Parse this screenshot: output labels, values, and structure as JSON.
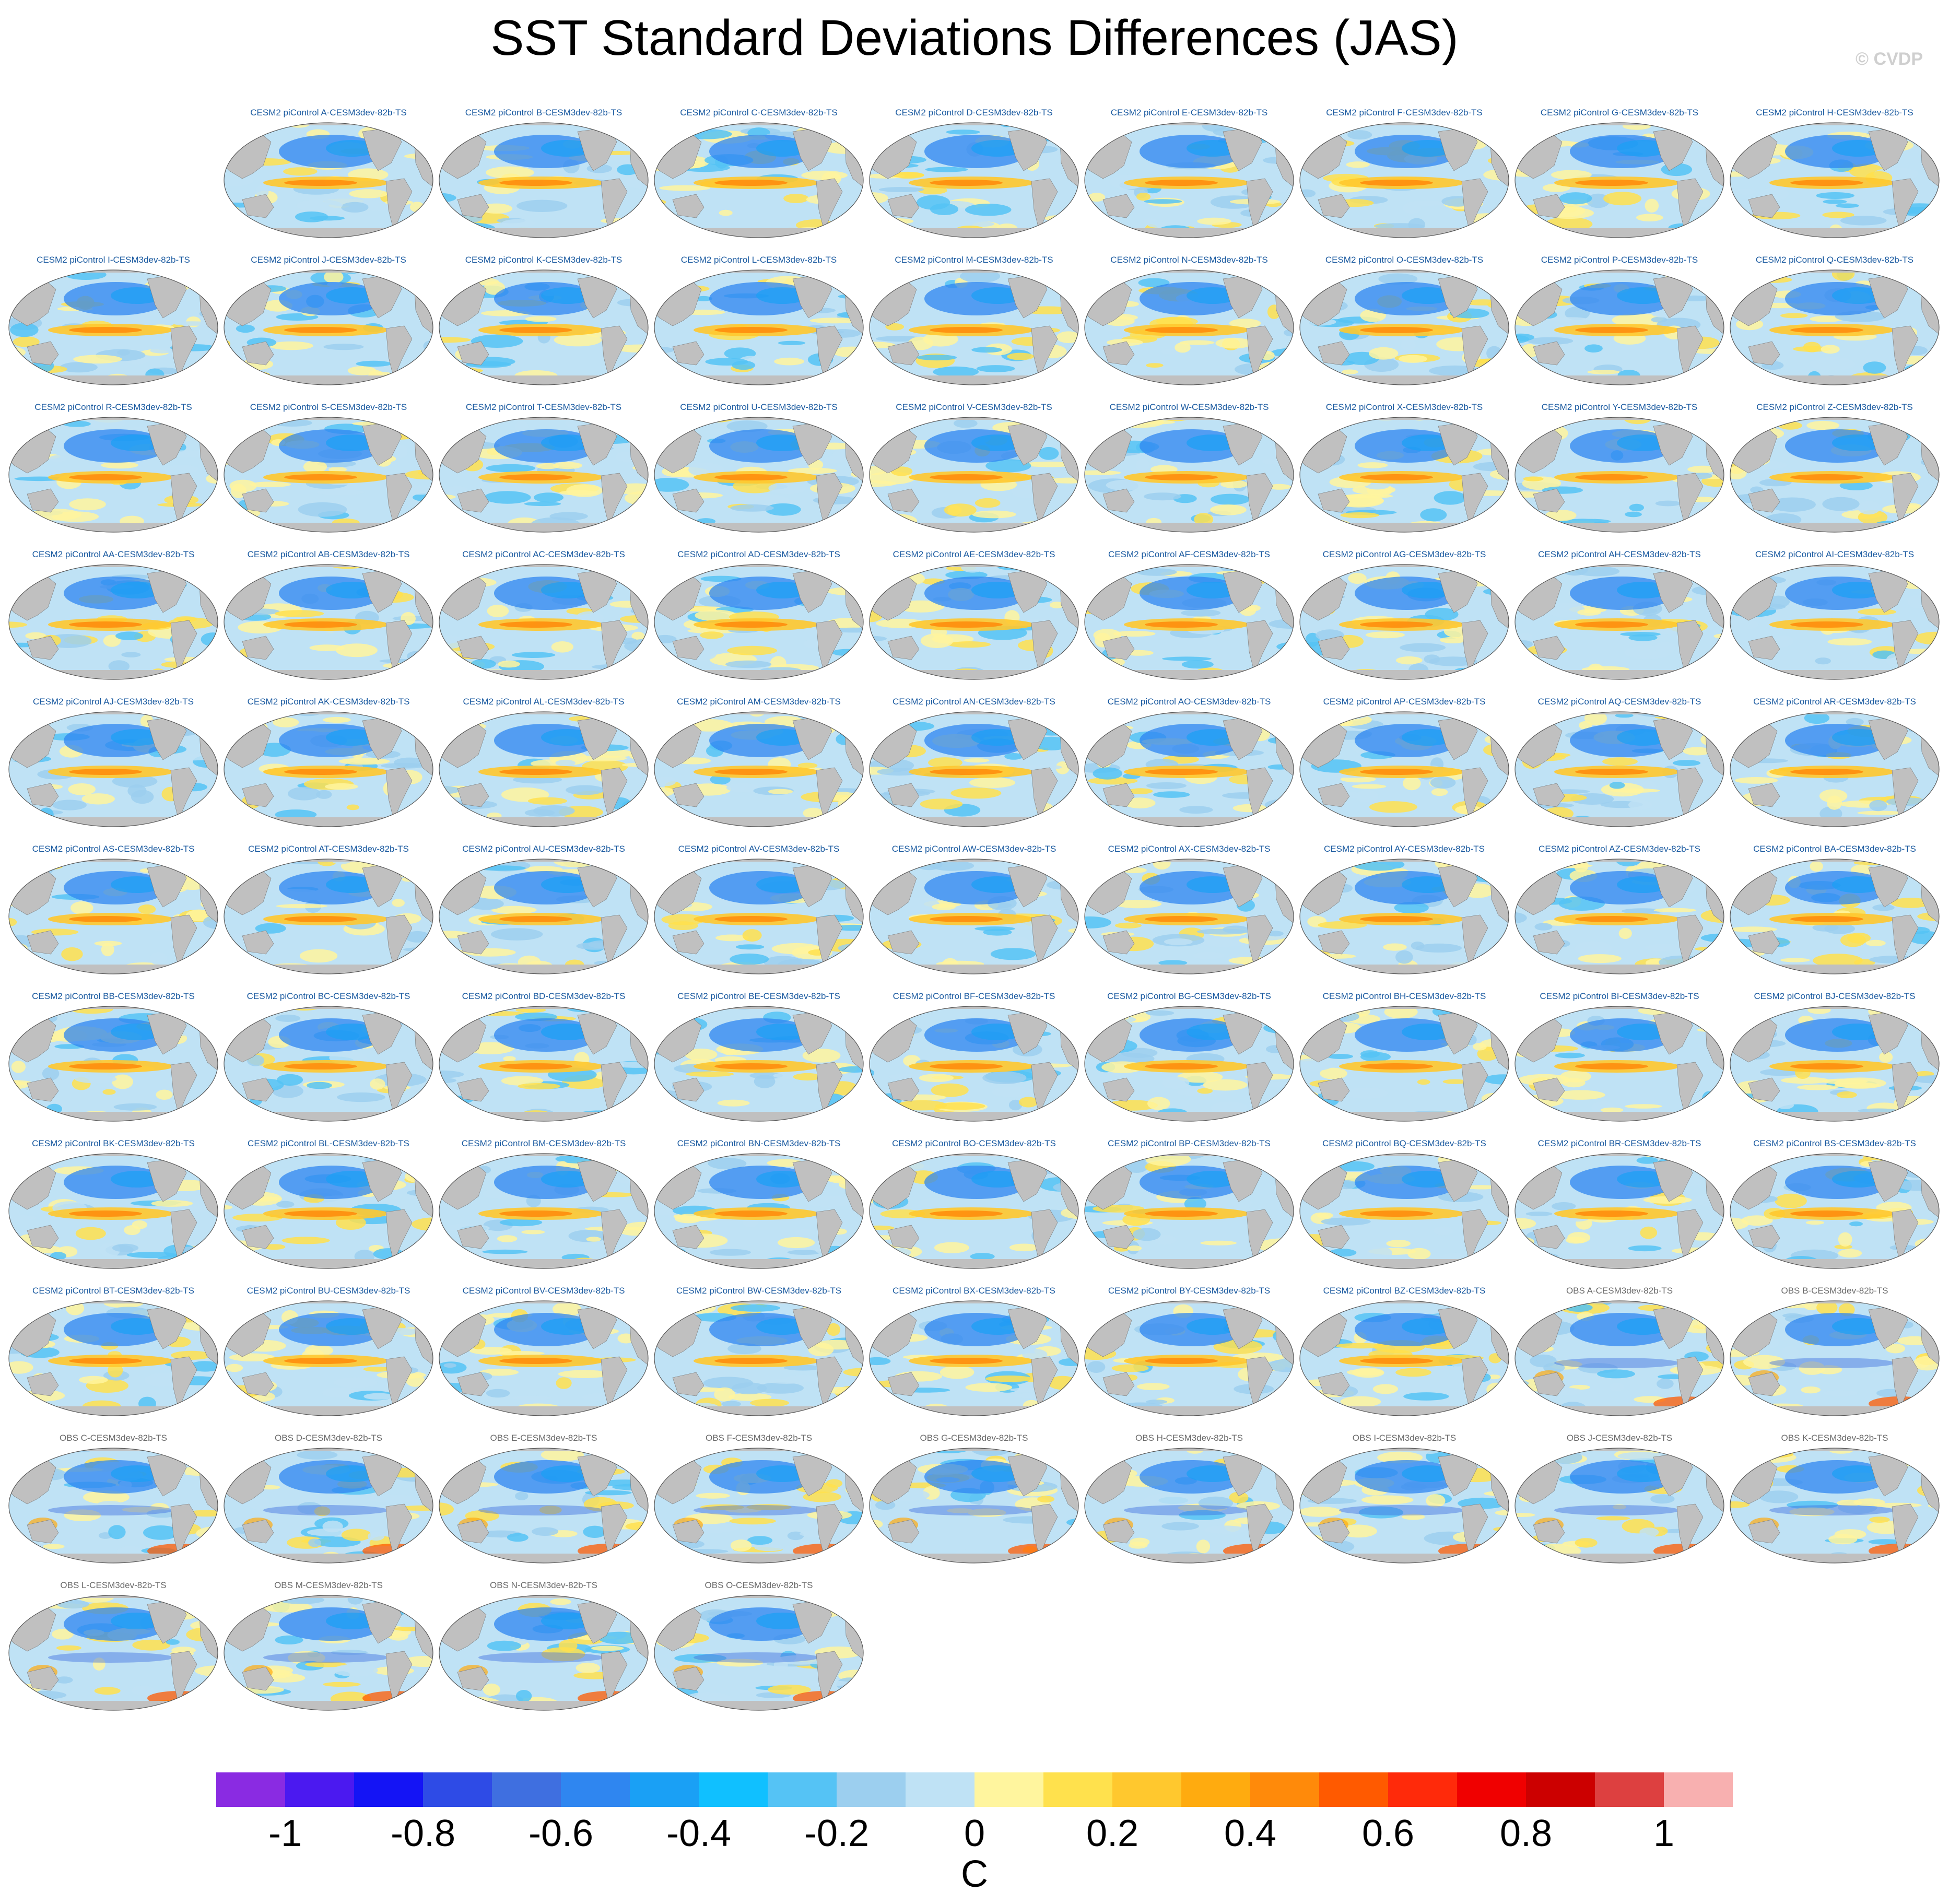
{
  "title": "SST Standard Deviations Differences (JAS)",
  "credit": "© CVDP",
  "colorbar": {
    "unit": "C",
    "ticks": [
      "-1",
      "-0.8",
      "-0.6",
      "-0.4",
      "-0.2",
      "0",
      "0.2",
      "0.4",
      "0.6",
      "0.8",
      "1"
    ],
    "colors": [
      "#8a2be2",
      "#4b19f0",
      "#1414f5",
      "#2e4be6",
      "#3f6fe0",
      "#2f86f0",
      "#1aa0f5",
      "#10c0ff",
      "#55c3f5",
      "#9ccfef",
      "#bfe2f5",
      "#fff59e",
      "#ffe14d",
      "#ffc82e",
      "#ffab0f",
      "#ff8a0a",
      "#ff5a00",
      "#ff2a0a",
      "#f00000",
      "#cc0000",
      "#dd4040",
      "#f8b0b0"
    ]
  },
  "panels": [
    {
      "label": "CESM2 piControl A-CESM3dev-82b-TS",
      "kind": "model"
    },
    {
      "label": "CESM2 piControl B-CESM3dev-82b-TS",
      "kind": "model"
    },
    {
      "label": "CESM2 piControl C-CESM3dev-82b-TS",
      "kind": "model"
    },
    {
      "label": "CESM2 piControl D-CESM3dev-82b-TS",
      "kind": "model"
    },
    {
      "label": "CESM2 piControl E-CESM3dev-82b-TS",
      "kind": "model"
    },
    {
      "label": "CESM2 piControl F-CESM3dev-82b-TS",
      "kind": "model"
    },
    {
      "label": "CESM2 piControl G-CESM3dev-82b-TS",
      "kind": "model"
    },
    {
      "label": "CESM2 piControl H-CESM3dev-82b-TS",
      "kind": "model"
    },
    {
      "label": "CESM2 piControl I-CESM3dev-82b-TS",
      "kind": "model"
    },
    {
      "label": "CESM2 piControl J-CESM3dev-82b-TS",
      "kind": "model"
    },
    {
      "label": "CESM2 piControl K-CESM3dev-82b-TS",
      "kind": "model"
    },
    {
      "label": "CESM2 piControl L-CESM3dev-82b-TS",
      "kind": "model"
    },
    {
      "label": "CESM2 piControl M-CESM3dev-82b-TS",
      "kind": "model"
    },
    {
      "label": "CESM2 piControl N-CESM3dev-82b-TS",
      "kind": "model"
    },
    {
      "label": "CESM2 piControl O-CESM3dev-82b-TS",
      "kind": "model"
    },
    {
      "label": "CESM2 piControl P-CESM3dev-82b-TS",
      "kind": "model"
    },
    {
      "label": "CESM2 piControl Q-CESM3dev-82b-TS",
      "kind": "model"
    },
    {
      "label": "CESM2 piControl R-CESM3dev-82b-TS",
      "kind": "model"
    },
    {
      "label": "CESM2 piControl S-CESM3dev-82b-TS",
      "kind": "model"
    },
    {
      "label": "CESM2 piControl T-CESM3dev-82b-TS",
      "kind": "model"
    },
    {
      "label": "CESM2 piControl U-CESM3dev-82b-TS",
      "kind": "model"
    },
    {
      "label": "CESM2 piControl V-CESM3dev-82b-TS",
      "kind": "model"
    },
    {
      "label": "CESM2 piControl W-CESM3dev-82b-TS",
      "kind": "model"
    },
    {
      "label": "CESM2 piControl X-CESM3dev-82b-TS",
      "kind": "model"
    },
    {
      "label": "CESM2 piControl Y-CESM3dev-82b-TS",
      "kind": "model"
    },
    {
      "label": "CESM2 piControl Z-CESM3dev-82b-TS",
      "kind": "model"
    },
    {
      "label": "CESM2 piControl AA-CESM3dev-82b-TS",
      "kind": "model"
    },
    {
      "label": "CESM2 piControl AB-CESM3dev-82b-TS",
      "kind": "model"
    },
    {
      "label": "CESM2 piControl AC-CESM3dev-82b-TS",
      "kind": "model"
    },
    {
      "label": "CESM2 piControl AD-CESM3dev-82b-TS",
      "kind": "model"
    },
    {
      "label": "CESM2 piControl AE-CESM3dev-82b-TS",
      "kind": "model"
    },
    {
      "label": "CESM2 piControl AF-CESM3dev-82b-TS",
      "kind": "model"
    },
    {
      "label": "CESM2 piControl AG-CESM3dev-82b-TS",
      "kind": "model"
    },
    {
      "label": "CESM2 piControl AH-CESM3dev-82b-TS",
      "kind": "model"
    },
    {
      "label": "CESM2 piControl AI-CESM3dev-82b-TS",
      "kind": "model"
    },
    {
      "label": "CESM2 piControl AJ-CESM3dev-82b-TS",
      "kind": "model"
    },
    {
      "label": "CESM2 piControl AK-CESM3dev-82b-TS",
      "kind": "model"
    },
    {
      "label": "CESM2 piControl AL-CESM3dev-82b-TS",
      "kind": "model"
    },
    {
      "label": "CESM2 piControl AM-CESM3dev-82b-TS",
      "kind": "model"
    },
    {
      "label": "CESM2 piControl AN-CESM3dev-82b-TS",
      "kind": "model"
    },
    {
      "label": "CESM2 piControl AO-CESM3dev-82b-TS",
      "kind": "model"
    },
    {
      "label": "CESM2 piControl AP-CESM3dev-82b-TS",
      "kind": "model"
    },
    {
      "label": "CESM2 piControl AQ-CESM3dev-82b-TS",
      "kind": "model"
    },
    {
      "label": "CESM2 piControl AR-CESM3dev-82b-TS",
      "kind": "model"
    },
    {
      "label": "CESM2 piControl AS-CESM3dev-82b-TS",
      "kind": "model"
    },
    {
      "label": "CESM2 piControl AT-CESM3dev-82b-TS",
      "kind": "model"
    },
    {
      "label": "CESM2 piControl AU-CESM3dev-82b-TS",
      "kind": "model"
    },
    {
      "label": "CESM2 piControl AV-CESM3dev-82b-TS",
      "kind": "model"
    },
    {
      "label": "CESM2 piControl AW-CESM3dev-82b-TS",
      "kind": "model"
    },
    {
      "label": "CESM2 piControl AX-CESM3dev-82b-TS",
      "kind": "model"
    },
    {
      "label": "CESM2 piControl AY-CESM3dev-82b-TS",
      "kind": "model"
    },
    {
      "label": "CESM2 piControl AZ-CESM3dev-82b-TS",
      "kind": "model"
    },
    {
      "label": "CESM2 piControl BA-CESM3dev-82b-TS",
      "kind": "model"
    },
    {
      "label": "CESM2 piControl BB-CESM3dev-82b-TS",
      "kind": "model"
    },
    {
      "label": "CESM2 piControl BC-CESM3dev-82b-TS",
      "kind": "model"
    },
    {
      "label": "CESM2 piControl BD-CESM3dev-82b-TS",
      "kind": "model"
    },
    {
      "label": "CESM2 piControl BE-CESM3dev-82b-TS",
      "kind": "model"
    },
    {
      "label": "CESM2 piControl BF-CESM3dev-82b-TS",
      "kind": "model"
    },
    {
      "label": "CESM2 piControl BG-CESM3dev-82b-TS",
      "kind": "model"
    },
    {
      "label": "CESM2 piControl BH-CESM3dev-82b-TS",
      "kind": "model"
    },
    {
      "label": "CESM2 piControl BI-CESM3dev-82b-TS",
      "kind": "model"
    },
    {
      "label": "CESM2 piControl BJ-CESM3dev-82b-TS",
      "kind": "model"
    },
    {
      "label": "CESM2 piControl BK-CESM3dev-82b-TS",
      "kind": "model"
    },
    {
      "label": "CESM2 piControl BL-CESM3dev-82b-TS",
      "kind": "model"
    },
    {
      "label": "CESM2 piControl BM-CESM3dev-82b-TS",
      "kind": "model"
    },
    {
      "label": "CESM2 piControl BN-CESM3dev-82b-TS",
      "kind": "model"
    },
    {
      "label": "CESM2 piControl BO-CESM3dev-82b-TS",
      "kind": "model"
    },
    {
      "label": "CESM2 piControl BP-CESM3dev-82b-TS",
      "kind": "model"
    },
    {
      "label": "CESM2 piControl BQ-CESM3dev-82b-TS",
      "kind": "model"
    },
    {
      "label": "CESM2 piControl BR-CESM3dev-82b-TS",
      "kind": "model"
    },
    {
      "label": "CESM2 piControl BS-CESM3dev-82b-TS",
      "kind": "model"
    },
    {
      "label": "CESM2 piControl BT-CESM3dev-82b-TS",
      "kind": "model"
    },
    {
      "label": "CESM2 piControl BU-CESM3dev-82b-TS",
      "kind": "model"
    },
    {
      "label": "CESM2 piControl BV-CESM3dev-82b-TS",
      "kind": "model"
    },
    {
      "label": "CESM2 piControl BW-CESM3dev-82b-TS",
      "kind": "model"
    },
    {
      "label": "CESM2 piControl BX-CESM3dev-82b-TS",
      "kind": "model"
    },
    {
      "label": "CESM2 piControl BY-CESM3dev-82b-TS",
      "kind": "model"
    },
    {
      "label": "CESM2 piControl BZ-CESM3dev-82b-TS",
      "kind": "model"
    },
    {
      "label": "OBS A-CESM3dev-82b-TS",
      "kind": "obs"
    },
    {
      "label": "OBS B-CESM3dev-82b-TS",
      "kind": "obs"
    },
    {
      "label": "OBS C-CESM3dev-82b-TS",
      "kind": "obs"
    },
    {
      "label": "OBS D-CESM3dev-82b-TS",
      "kind": "obs"
    },
    {
      "label": "OBS E-CESM3dev-82b-TS",
      "kind": "obs"
    },
    {
      "label": "OBS F-CESM3dev-82b-TS",
      "kind": "obs"
    },
    {
      "label": "OBS G-CESM3dev-82b-TS",
      "kind": "obs"
    },
    {
      "label": "OBS H-CESM3dev-82b-TS",
      "kind": "obs"
    },
    {
      "label": "OBS I-CESM3dev-82b-TS",
      "kind": "obs"
    },
    {
      "label": "OBS J-CESM3dev-82b-TS",
      "kind": "obs"
    },
    {
      "label": "OBS K-CESM3dev-82b-TS",
      "kind": "obs"
    },
    {
      "label": "OBS L-CESM3dev-82b-TS",
      "kind": "obs"
    },
    {
      "label": "OBS M-CESM3dev-82b-TS",
      "kind": "obs"
    },
    {
      "label": "OBS N-CESM3dev-82b-TS",
      "kind": "obs"
    },
    {
      "label": "OBS O-CESM3dev-82b-TS",
      "kind": "obs"
    }
  ]
}
